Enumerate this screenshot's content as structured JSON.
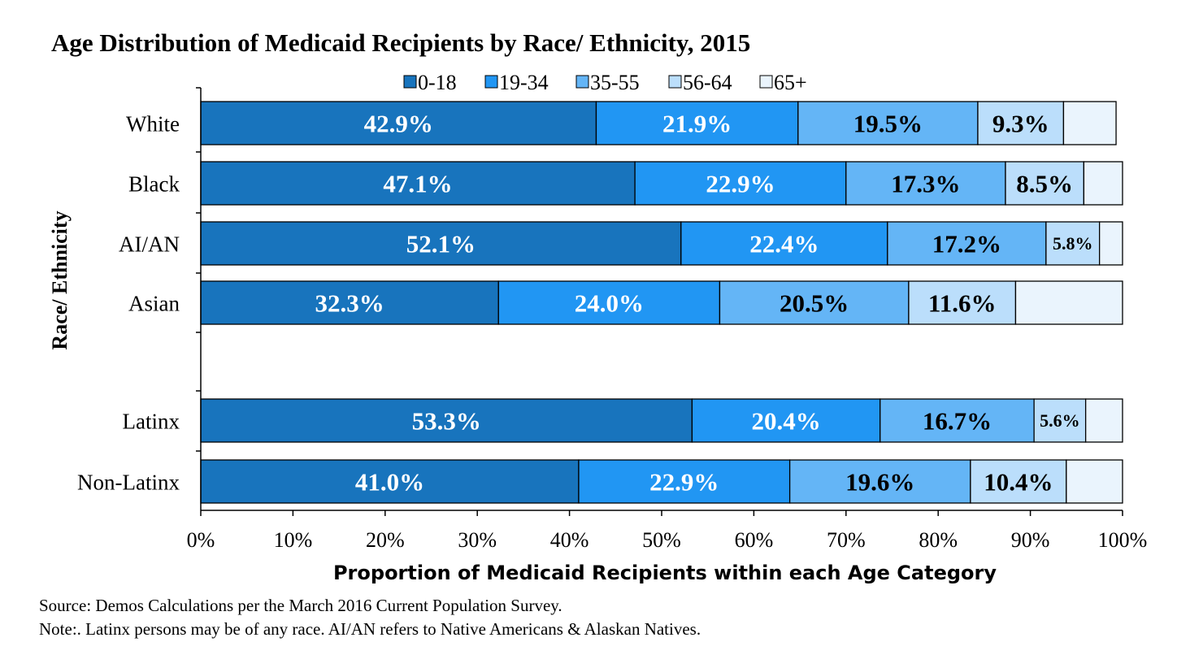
{
  "chart_data": {
    "type": "bar",
    "orientation": "horizontal",
    "stacked": true,
    "title": "Age Distribution of Medicaid Recipients by Race/ Ethnicity, 2015",
    "xlabel": "Proportion of Medicaid Recipients within each Age Category",
    "ylabel": "Race/ Ethnicity",
    "xlim": [
      0,
      100
    ],
    "x_ticks": [
      "0%",
      "10%",
      "20%",
      "30%",
      "40%",
      "50%",
      "60%",
      "70%",
      "80%",
      "90%",
      "100%"
    ],
    "legend_position": "top",
    "grid": false,
    "categories": [
      "White",
      "Black",
      "AI/AN",
      "Asian",
      "Latinx",
      "Non-Latinx"
    ],
    "series": [
      {
        "name": "0-18",
        "color": "#1874bd",
        "values": [
          42.9,
          47.1,
          52.1,
          32.3,
          53.3,
          41.0
        ],
        "labels": [
          "42.9%",
          "47.1%",
          "52.1%",
          "32.3%",
          "53.3%",
          "41.0%"
        ]
      },
      {
        "name": "19-34",
        "color": "#2196f3",
        "values": [
          21.9,
          22.9,
          22.4,
          24.0,
          20.4,
          22.9
        ],
        "labels": [
          "21.9%",
          "22.9%",
          "22.4%",
          "24.0%",
          "20.4%",
          "22.9%"
        ]
      },
      {
        "name": "35-55",
        "color": "#64b5f6",
        "values": [
          19.5,
          17.3,
          17.2,
          20.5,
          16.7,
          19.6
        ],
        "labels": [
          "19.5%",
          "17.3%",
          "17.2%",
          "20.5%",
          "16.7%",
          "19.6%"
        ]
      },
      {
        "name": "56-64",
        "color": "#bbdefb",
        "values": [
          9.3,
          8.5,
          5.8,
          11.6,
          5.6,
          10.4
        ],
        "labels": [
          "9.3%",
          "8.5%",
          "5.8%",
          "11.6%",
          "5.6%",
          "10.4%"
        ]
      },
      {
        "name": "65+",
        "color": "#eaf4fd",
        "values": [
          5.7,
          4.2,
          2.5,
          11.6,
          4.0,
          6.1
        ],
        "labels": [
          "",
          "",
          "",
          "",
          "",
          ""
        ]
      }
    ]
  },
  "footer": {
    "source": "Source:  Demos Calculations  per  the March 2016  Current Population  Survey.",
    "note": "Note:. Latinx  persons may be of any race.  AI/AN refers to Native Americans & Alaskan Natives."
  }
}
